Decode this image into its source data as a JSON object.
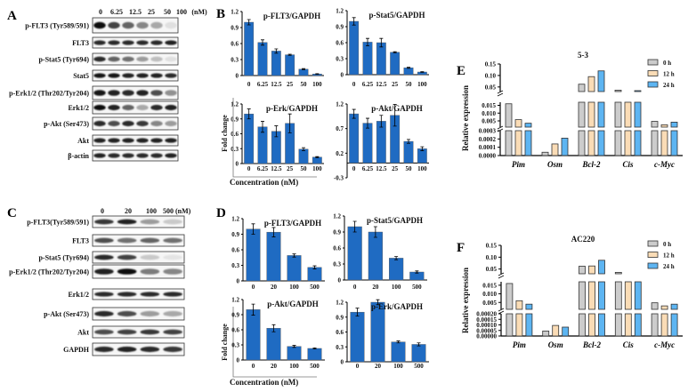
{
  "panels": {
    "A": "A",
    "B": "B",
    "C": "C",
    "D": "D",
    "E": "E",
    "F": "F"
  },
  "colors": {
    "bar_blue": "#1f6bc2",
    "gray_0h": "#cccccc",
    "peach_12h": "#fadcb6",
    "blue_24h": "#5db5f2",
    "band": "#111111"
  },
  "blot_A": {
    "lanes": [
      "0",
      "6.25",
      "12.5",
      "25",
      "50",
      "100"
    ],
    "unit": "(nM)",
    "rows": [
      {
        "label": "p-FLT3 (Tyr589/591)",
        "intensity": [
          1,
          0.75,
          0.6,
          0.45,
          0.3,
          0.05
        ]
      },
      {
        "label": "FLT3",
        "intensity": [
          0.85,
          0.85,
          0.85,
          0.85,
          0.85,
          0.9
        ]
      },
      {
        "label": "p-Stat5 (Tyr694)",
        "intensity": [
          0.85,
          0.6,
          0.55,
          0.35,
          0.2,
          0.05
        ]
      },
      {
        "label": "Stat5",
        "intensity": [
          0.95,
          0.95,
          0.9,
          0.9,
          0.9,
          0.85
        ]
      },
      {
        "label": "p-Erk1/2 (Thr202/Tyr204)",
        "intensity": [
          0.95,
          0.9,
          0.85,
          0.9,
          0.7,
          0.4
        ]
      },
      {
        "label": "Erk1/2",
        "intensity": [
          1,
          0.9,
          0.6,
          0.3,
          0.85,
          0.9
        ]
      },
      {
        "label": "p-Akt (Ser473)",
        "intensity": [
          0.85,
          0.7,
          0.85,
          0.8,
          0.45,
          0.35
        ]
      },
      {
        "label": "Akt",
        "intensity": [
          0.9,
          0.9,
          0.9,
          0.9,
          0.9,
          0.9
        ]
      },
      {
        "label": "β-actin",
        "intensity": [
          0.9,
          0.85,
          0.85,
          0.85,
          0.85,
          0.9
        ]
      }
    ]
  },
  "blot_C": {
    "lanes": [
      "0",
      "20",
      "100",
      "500 (nM)"
    ],
    "rows": [
      {
        "label": "p-FLT3(Tyr589/591)",
        "intensity": [
          0.8,
          0.9,
          0.35,
          0.15
        ]
      },
      {
        "label": "FLT3",
        "intensity": [
          0.7,
          0.55,
          0.6,
          0.55
        ]
      },
      {
        "label": "p-Stat5 (Tyr694)",
        "intensity": [
          0.85,
          0.75,
          0.15,
          0.03
        ]
      },
      {
        "label": "p-Erk1/2 (Thr202/Tyr204)",
        "intensity": [
          0.9,
          1,
          0.5,
          0.45
        ]
      },
      {
        "label": "Erk1/2",
        "intensity": [
          0.85,
          0.85,
          0.85,
          0.85
        ]
      },
      {
        "label": "p-Akt (Ser473)",
        "intensity": [
          0.85,
          0.7,
          0.35,
          0.3
        ]
      },
      {
        "label": "Akt",
        "intensity": [
          0.7,
          0.75,
          0.8,
          0.75
        ]
      },
      {
        "label": "GAPDH",
        "intensity": [
          0.85,
          0.9,
          0.85,
          0.8
        ]
      }
    ]
  },
  "axis_text": {
    "fold_change": "Fold change",
    "concentration": "Concentration (nM)",
    "relative_expression": "Relative expression"
  },
  "chart_data": [
    {
      "id": "B1",
      "type": "bar",
      "title": "p-FLT3/GAPDH",
      "categories": [
        "0",
        "6.25",
        "12.5",
        "25",
        "50",
        "100"
      ],
      "values": [
        1.0,
        0.62,
        0.46,
        0.39,
        0.12,
        0.03
      ],
      "errors": [
        0.05,
        0.05,
        0.04,
        0.01,
        0.01,
        0.005
      ],
      "ylim": [
        0,
        1.2
      ],
      "yticks": [
        "0",
        "0.3",
        "0.6",
        "0.9",
        "1.2"
      ]
    },
    {
      "id": "B2",
      "type": "bar",
      "title": "p-Stat5/GAPDH",
      "categories": [
        "0",
        "6.25",
        "12.5",
        "25",
        "50",
        "100"
      ],
      "values": [
        1.0,
        0.61,
        0.6,
        0.42,
        0.13,
        0.05
      ],
      "errors": [
        0.07,
        0.07,
        0.08,
        0.01,
        0.01,
        0.005
      ],
      "ylim": [
        0,
        1.2
      ],
      "yticks": [
        "0",
        "0.3",
        "0.6",
        "0.9",
        "1.2"
      ]
    },
    {
      "id": "B3",
      "type": "bar",
      "title": "p-Erk/GAPDH",
      "categories": [
        "0",
        "6.25",
        "12.5",
        "25",
        "50",
        "100"
      ],
      "values": [
        1.0,
        0.74,
        0.65,
        0.81,
        0.29,
        0.13
      ],
      "errors": [
        0.1,
        0.11,
        0.11,
        0.19,
        0.03,
        0.01
      ],
      "ylim": [
        0,
        1.2
      ],
      "yticks": [
        "0",
        "0.3",
        "0.6",
        "0.9",
        "1.2"
      ]
    },
    {
      "id": "B4",
      "type": "bar",
      "title": "p-Akt/GAPDH",
      "categories": [
        "0",
        "6.25",
        "12.5",
        "25",
        "50",
        "100"
      ],
      "values": [
        1.0,
        0.81,
        0.85,
        0.97,
        0.44,
        0.29
      ],
      "errors": [
        0.09,
        0.1,
        0.12,
        0.22,
        0.04,
        0.04
      ],
      "ylim": [
        -0.3,
        1.2
      ],
      "yticks": [
        "-0.3",
        "0.2",
        "0.7",
        "1.2"
      ]
    },
    {
      "id": "D1",
      "type": "bar",
      "title": "p-FLT3/GAPDH",
      "categories": [
        "0",
        "20",
        "100",
        "500"
      ],
      "values": [
        1.0,
        0.94,
        0.49,
        0.26
      ],
      "errors": [
        0.1,
        0.09,
        0.03,
        0.03
      ],
      "ylim": [
        0,
        1.2
      ],
      "yticks": [
        "0",
        "0.3",
        "0.6",
        "0.9",
        "1.2"
      ]
    },
    {
      "id": "D2",
      "type": "bar",
      "title": "p-Stat5/GAPDH",
      "categories": [
        "0",
        "20",
        "100",
        "500"
      ],
      "values": [
        1.0,
        0.9,
        0.41,
        0.15
      ],
      "errors": [
        0.1,
        0.1,
        0.03,
        0.02
      ],
      "ylim": [
        0,
        1.2
      ],
      "yticks": [
        "0",
        "0.3",
        "0.6",
        "0.9",
        "1.2"
      ]
    },
    {
      "id": "D3",
      "type": "bar",
      "title": "p-Akt/GAPDH",
      "categories": [
        "0",
        "20",
        "100",
        "500"
      ],
      "values": [
        1.0,
        0.63,
        0.27,
        0.23
      ],
      "errors": [
        0.11,
        0.07,
        0.02,
        0.01
      ],
      "ylim": [
        0,
        1.2
      ],
      "yticks": [
        "0",
        "0.3",
        "0.6",
        "0.9",
        "1.2"
      ]
    },
    {
      "id": "D4",
      "type": "bar",
      "title": "p-Erk/GAPDH",
      "categories": [
        "0",
        "20",
        "100",
        "500"
      ],
      "values": [
        1.0,
        1.2,
        0.4,
        0.35
      ],
      "errors": [
        0.08,
        0.05,
        0.02,
        0.03
      ],
      "ylim": [
        0,
        1.2
      ],
      "yticks": [
        "0",
        "0.3",
        "0.6",
        "0.9",
        "1.2"
      ]
    },
    {
      "id": "E",
      "type": "bar",
      "title": "5-3",
      "ylabel": "Relative expression",
      "categories": [
        "Pim",
        "Osm",
        "Bcl-2",
        "Cis",
        "c-Myc"
      ],
      "series": [
        {
          "name": "0 h",
          "values": [
            0.016,
            4e-05,
            0.062,
            0.036,
            0.0047
          ]
        },
        {
          "name": "12 h",
          "values": [
            0.0058,
            0.00014,
            0.095,
            0.03,
            0.0025
          ]
        },
        {
          "name": "24 h",
          "values": [
            0.0035,
            0.00021,
            0.12,
            0.034,
            0.0042
          ]
        }
      ],
      "broken_axis_segments": [
        [
          0,
          0.0003
        ],
        [
          0.001,
          0.017
        ],
        [
          0.03,
          0.15
        ]
      ],
      "yticks": [
        [
          "0.0000",
          "0.0001",
          "0.0002",
          "0.0003"
        ],
        [
          "0.005",
          "0.010",
          "0.015"
        ],
        [
          "0.05",
          "0.10",
          "0.15"
        ]
      ],
      "legend": "top-right"
    },
    {
      "id": "F",
      "type": "bar",
      "title": "AC220",
      "ylabel": "Relative expression",
      "categories": [
        "Pim",
        "Osm",
        "Bcl-2",
        "Cis",
        "c-Myc"
      ],
      "series": [
        {
          "name": "0 h",
          "values": [
            0.016,
            4.5e-05,
            0.062,
            0.036,
            0.0048
          ]
        },
        {
          "name": "12 h",
          "values": [
            0.006,
            9.5e-05,
            0.063,
            0.025,
            0.003
          ]
        },
        {
          "name": "24 h",
          "values": [
            0.004,
            8e-05,
            0.087,
            0.028,
            0.004
          ]
        }
      ],
      "broken_axis_segments": [
        [
          0,
          0.0002
        ],
        [
          0.001,
          0.017
        ],
        [
          0.03,
          0.15
        ]
      ],
      "yticks": [
        [
          "0.00000",
          "0.00005",
          "0.00010",
          "0.00015",
          "0.00020"
        ],
        [
          "0.005",
          "0.010",
          "0.015"
        ],
        [
          "0.05",
          "0.10",
          "0.15"
        ]
      ],
      "legend": "top-right"
    }
  ]
}
